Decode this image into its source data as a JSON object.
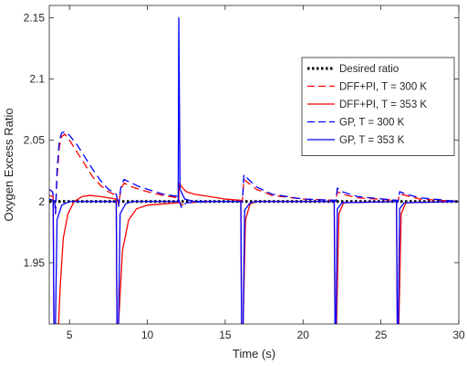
{
  "chart_data": {
    "type": "line",
    "title": "",
    "xlabel": "Time (s)",
    "ylabel": "Oxygen Excess Ratio",
    "xlim": [
      3.7,
      30
    ],
    "ylim": [
      1.9,
      2.16
    ],
    "xticks": [
      5,
      10,
      15,
      20,
      25,
      30
    ],
    "yticks": [
      1.95,
      2,
      2.05,
      2.1,
      2.15
    ],
    "xtick_labels": [
      "5",
      "10",
      "15",
      "20",
      "25",
      "30"
    ],
    "ytick_labels": [
      "1.95",
      "2",
      "2.05",
      "2.1",
      "2.15"
    ],
    "grid": false,
    "legend_position": "upper-right",
    "series": [
      {
        "name": "Desired ratio",
        "color": "#000000",
        "style": "dotted",
        "points": [
          [
            3.7,
            2.0
          ],
          [
            30,
            2.0
          ]
        ]
      },
      {
        "name": "DFF+PI, T = 300 K",
        "color": "#ff0000",
        "style": "dashed",
        "points": [
          [
            3.7,
            2.01
          ],
          [
            3.9,
            2.008
          ],
          [
            4.05,
            2.0
          ],
          [
            4.1,
            1.99
          ],
          [
            4.2,
            2.02
          ],
          [
            4.35,
            2.045
          ],
          [
            4.5,
            2.053
          ],
          [
            4.7,
            2.055
          ],
          [
            5.0,
            2.05
          ],
          [
            5.5,
            2.04
          ],
          [
            6.0,
            2.03
          ],
          [
            6.5,
            2.02
          ],
          [
            7.0,
            2.013
          ],
          [
            7.5,
            2.008
          ],
          [
            8.0,
            2.005
          ],
          [
            8.1,
            2.0
          ],
          [
            8.15,
            1.997
          ],
          [
            8.3,
            2.01
          ],
          [
            8.5,
            2.015
          ],
          [
            9.0,
            2.012
          ],
          [
            9.5,
            2.01
          ],
          [
            10.0,
            2.008
          ],
          [
            11.0,
            2.005
          ],
          [
            12.0,
            2.003
          ],
          [
            12.05,
            2.0
          ],
          [
            12.2,
            1.997
          ],
          [
            12.5,
            1.999
          ],
          [
            14.0,
            2.0
          ],
          [
            16.0,
            2.0
          ],
          [
            16.1,
            2.0
          ],
          [
            16.2,
            2.018
          ],
          [
            16.5,
            2.015
          ],
          [
            17.0,
            2.01
          ],
          [
            18.0,
            2.005
          ],
          [
            20.0,
            2.002
          ],
          [
            22.0,
            2.001
          ],
          [
            22.1,
            2.0
          ],
          [
            22.2,
            2.008
          ],
          [
            22.5,
            2.006
          ],
          [
            23.5,
            2.003
          ],
          [
            26.0,
            2.001
          ],
          [
            26.1,
            2.0
          ],
          [
            26.2,
            2.006
          ],
          [
            26.6,
            2.005
          ],
          [
            27.5,
            2.002
          ],
          [
            30.0,
            2.0
          ]
        ]
      },
      {
        "name": "DFF+PI, T = 353 K",
        "color": "#ff0000",
        "style": "solid",
        "points": [
          [
            3.7,
            2.005
          ],
          [
            3.95,
            2.004
          ],
          [
            4.0,
            1.9
          ],
          [
            4.3,
            1.9
          ],
          [
            4.4,
            1.93
          ],
          [
            4.6,
            1.97
          ],
          [
            4.9,
            1.99
          ],
          [
            5.3,
            2.0
          ],
          [
            5.8,
            2.004
          ],
          [
            6.3,
            2.005
          ],
          [
            7.0,
            2.004
          ],
          [
            8.0,
            2.002
          ],
          [
            8.05,
            1.9
          ],
          [
            8.15,
            1.9
          ],
          [
            8.4,
            1.96
          ],
          [
            8.8,
            1.985
          ],
          [
            9.3,
            1.994
          ],
          [
            10.0,
            1.997
          ],
          [
            11.0,
            1.998
          ],
          [
            12.0,
            1.999
          ],
          [
            12.05,
            2.015
          ],
          [
            12.2,
            2.012
          ],
          [
            12.5,
            2.008
          ],
          [
            13.0,
            2.006
          ],
          [
            14.0,
            2.004
          ],
          [
            15.0,
            2.002
          ],
          [
            16.0,
            2.001
          ],
          [
            16.05,
            1.9
          ],
          [
            16.15,
            1.9
          ],
          [
            16.3,
            1.985
          ],
          [
            16.6,
            1.998
          ],
          [
            17.0,
            2.0
          ],
          [
            22.0,
            2.0
          ],
          [
            22.05,
            1.9
          ],
          [
            22.15,
            1.9
          ],
          [
            22.3,
            1.99
          ],
          [
            22.6,
            1.999
          ],
          [
            26.0,
            2.0
          ],
          [
            26.05,
            1.9
          ],
          [
            26.15,
            1.9
          ],
          [
            26.3,
            1.99
          ],
          [
            26.6,
            1.999
          ],
          [
            30.0,
            2.0
          ]
        ]
      },
      {
        "name": "GP, T = 300 K",
        "color": "#0000ff",
        "style": "dashed",
        "points": [
          [
            3.7,
            2.01
          ],
          [
            3.9,
            2.008
          ],
          [
            4.05,
            2.0
          ],
          [
            4.1,
            1.99
          ],
          [
            4.2,
            2.025
          ],
          [
            4.35,
            2.05
          ],
          [
            4.5,
            2.056
          ],
          [
            4.7,
            2.057
          ],
          [
            5.0,
            2.054
          ],
          [
            5.5,
            2.046
          ],
          [
            6.0,
            2.036
          ],
          [
            6.5,
            2.026
          ],
          [
            7.0,
            2.017
          ],
          [
            7.5,
            2.01
          ],
          [
            8.0,
            2.006
          ],
          [
            8.1,
            2.0
          ],
          [
            8.15,
            1.996
          ],
          [
            8.3,
            2.012
          ],
          [
            8.5,
            2.018
          ],
          [
            9.0,
            2.015
          ],
          [
            9.5,
            2.012
          ],
          [
            10.0,
            2.01
          ],
          [
            11.0,
            2.006
          ],
          [
            12.0,
            2.004
          ],
          [
            12.05,
            2.0
          ],
          [
            12.2,
            1.995
          ],
          [
            12.5,
            1.999
          ],
          [
            14.0,
            2.0
          ],
          [
            16.0,
            2.0
          ],
          [
            16.1,
            2.0
          ],
          [
            16.2,
            2.022
          ],
          [
            16.5,
            2.018
          ],
          [
            17.0,
            2.012
          ],
          [
            18.0,
            2.006
          ],
          [
            20.0,
            2.002
          ],
          [
            22.0,
            2.001
          ],
          [
            22.1,
            2.0
          ],
          [
            22.2,
            2.011
          ],
          [
            22.5,
            2.008
          ],
          [
            23.5,
            2.004
          ],
          [
            26.0,
            2.001
          ],
          [
            26.1,
            2.0
          ],
          [
            26.2,
            2.008
          ],
          [
            26.6,
            2.006
          ],
          [
            27.5,
            2.003
          ],
          [
            30.0,
            2.0
          ]
        ]
      },
      {
        "name": "GP, T = 353 K",
        "color": "#0000ff",
        "style": "solid",
        "points": [
          [
            3.7,
            2.002
          ],
          [
            3.95,
            2.001
          ],
          [
            4.0,
            1.9
          ],
          [
            4.1,
            1.9
          ],
          [
            4.2,
            1.985
          ],
          [
            4.5,
            1.997
          ],
          [
            5.0,
            2.0
          ],
          [
            8.0,
            2.0
          ],
          [
            8.05,
            1.9
          ],
          [
            8.15,
            1.9
          ],
          [
            8.25,
            1.99
          ],
          [
            8.6,
            1.998
          ],
          [
            9.0,
            2.0
          ],
          [
            11.98,
            2.0
          ],
          [
            12.02,
            2.15
          ],
          [
            12.1,
            2.01
          ],
          [
            12.4,
            2.002
          ],
          [
            13.0,
            2.0
          ],
          [
            16.0,
            2.0
          ],
          [
            16.05,
            1.9
          ],
          [
            16.15,
            1.9
          ],
          [
            16.25,
            1.993
          ],
          [
            16.6,
            1.999
          ],
          [
            17.0,
            2.0
          ],
          [
            22.0,
            2.0
          ],
          [
            22.05,
            1.9
          ],
          [
            22.12,
            1.9
          ],
          [
            22.2,
            1.994
          ],
          [
            22.5,
            1.999
          ],
          [
            26.0,
            2.0
          ],
          [
            26.05,
            1.9
          ],
          [
            26.12,
            1.9
          ],
          [
            26.2,
            1.994
          ],
          [
            26.5,
            1.999
          ],
          [
            30.0,
            2.0
          ]
        ]
      }
    ]
  }
}
